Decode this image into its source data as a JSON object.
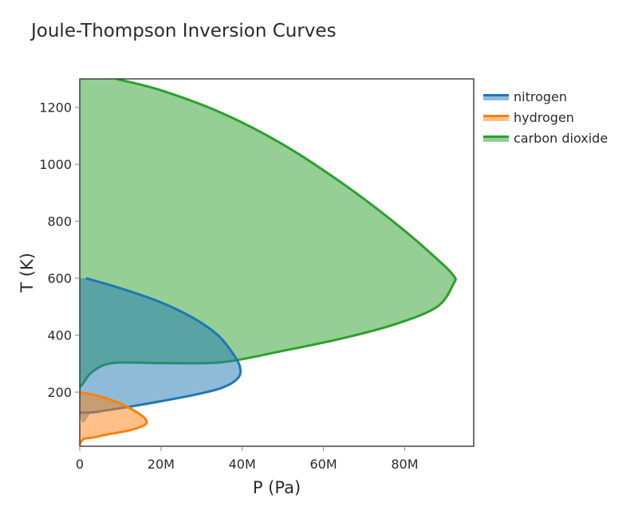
{
  "title": "Joule-Thompson Inversion Curves",
  "chart_data": {
    "type": "area",
    "title": "Joule-Thompson Inversion Curves",
    "xlabel": "P (Pa)",
    "ylabel": "T (K)",
    "xlim": [
      0,
      97000000
    ],
    "ylim": [
      10,
      1300
    ],
    "x_ticks": [
      0,
      20000000,
      40000000,
      60000000,
      80000000
    ],
    "x_tick_labels": [
      "0",
      "20M",
      "40M",
      "60M",
      "80M"
    ],
    "y_ticks": [
      200,
      400,
      600,
      800,
      1000,
      1200
    ],
    "y_tick_labels": [
      "200",
      "400",
      "600",
      "800",
      "1000",
      "1200"
    ],
    "grid": false,
    "legend_position": "right",
    "fill": "toself",
    "series": [
      {
        "name": "nitrogen",
        "color": "#1f77b4",
        "fill_color": "rgba(31,119,180,0.5)",
        "points": [
          [
            1500000,
            600
          ],
          [
            10000000,
            565
          ],
          [
            20000000,
            515
          ],
          [
            28000000,
            460
          ],
          [
            34000000,
            400
          ],
          [
            37500000,
            340
          ],
          [
            39400000,
            290
          ],
          [
            39000000,
            250
          ],
          [
            35000000,
            215
          ],
          [
            28000000,
            190
          ],
          [
            20000000,
            168
          ],
          [
            12000000,
            148
          ],
          [
            6000000,
            135
          ],
          [
            3000000,
            129
          ],
          [
            0,
            128
          ],
          [
            0,
            600
          ]
        ]
      },
      {
        "name": "hydrogen",
        "color": "#ff7f0e",
        "fill_color": "rgba(255,127,14,0.5)",
        "points": [
          [
            0,
            200
          ],
          [
            5000000,
            185
          ],
          [
            10000000,
            160
          ],
          [
            14000000,
            130
          ],
          [
            16200000,
            105
          ],
          [
            16000000,
            85
          ],
          [
            12000000,
            65
          ],
          [
            7000000,
            52
          ],
          [
            3000000,
            40
          ],
          [
            1000000,
            36
          ],
          [
            0,
            18
          ],
          [
            0,
            200
          ]
        ]
      },
      {
        "name": "carbon dioxide",
        "color": "#2ca02c",
        "fill_color": "rgba(44,160,44,0.5)",
        "points": [
          [
            9000000,
            1300
          ],
          [
            20000000,
            1260
          ],
          [
            35000000,
            1180
          ],
          [
            50000000,
            1070
          ],
          [
            65000000,
            930
          ],
          [
            78000000,
            790
          ],
          [
            87000000,
            680
          ],
          [
            92000000,
            610
          ],
          [
            92000000,
            580
          ],
          [
            88000000,
            500
          ],
          [
            78000000,
            440
          ],
          [
            65000000,
            390
          ],
          [
            50000000,
            345
          ],
          [
            35000000,
            305
          ],
          [
            20000000,
            302
          ],
          [
            8000000,
            302
          ],
          [
            3000000,
            270
          ],
          [
            500000,
            225
          ],
          [
            0,
            225
          ],
          [
            0,
            1300
          ]
        ]
      }
    ]
  },
  "axes": {
    "x_label": "P (Pa)",
    "y_label": "T (K)",
    "x_ticks": [
      "0",
      "20M",
      "40M",
      "60M",
      "80M"
    ],
    "y_ticks": [
      "200",
      "400",
      "600",
      "800",
      "1000",
      "1200"
    ]
  },
  "legend": {
    "items": [
      {
        "label": "nitrogen",
        "color": "#1f77b4"
      },
      {
        "label": "hydrogen",
        "color": "#ff7f0e"
      },
      {
        "label": "carbon dioxide",
        "color": "#2ca02c"
      }
    ]
  }
}
